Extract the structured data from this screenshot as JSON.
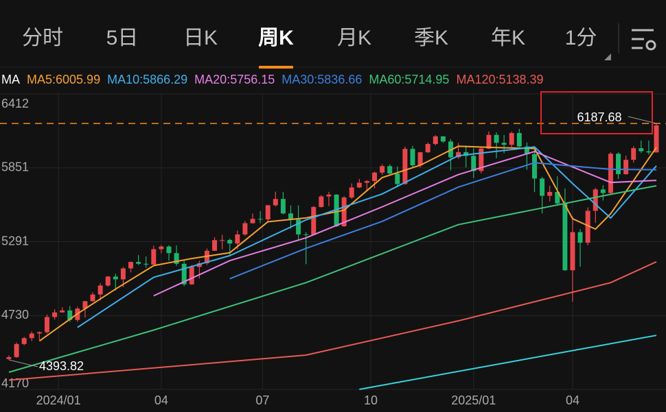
{
  "tabs": [
    "分时",
    "5日",
    "日K",
    "周K",
    "月K",
    "季K",
    "年K",
    "1分"
  ],
  "active_tab": 3,
  "chart_data": {
    "type": "candlestick",
    "legend_title": "MA",
    "candles": [
      [
        4400,
        4428,
        4393.82,
        4415
      ],
      [
        4415,
        4525,
        4410,
        4514
      ],
      [
        4514,
        4568,
        4505,
        4559
      ],
      [
        4559,
        4610,
        4537,
        4594
      ],
      [
        4594,
        4610,
        4546,
        4604
      ],
      [
        4604,
        4738,
        4593,
        4719
      ],
      [
        4719,
        4778,
        4700,
        4754
      ],
      [
        4754,
        4793,
        4751,
        4769
      ],
      [
        4769,
        4802,
        4682,
        4697
      ],
      [
        4697,
        4798,
        4682,
        4783
      ],
      [
        4783,
        4842,
        4714,
        4839
      ],
      [
        4839,
        4907,
        4836,
        4890
      ],
      [
        4890,
        4975,
        4845,
        4958
      ],
      [
        4958,
        5030,
        4950,
        5026
      ],
      [
        5026,
        5048,
        4920,
        5005
      ],
      [
        5005,
        5098,
        4946,
        5088
      ],
      [
        5088,
        5140,
        5057,
        5137
      ],
      [
        5137,
        5189,
        5114,
        5123
      ],
      [
        5123,
        5179,
        5094,
        5117
      ],
      [
        5117,
        5261,
        5117,
        5234
      ],
      [
        5234,
        5264,
        5204,
        5254
      ],
      [
        5254,
        5264,
        5146,
        5204
      ],
      [
        5204,
        5263,
        5107,
        5123
      ],
      [
        5123,
        5146,
        4953,
        4967
      ],
      [
        4967,
        5114,
        4963,
        5099
      ],
      [
        5099,
        5146,
        5011,
        5127
      ],
      [
        5127,
        5239,
        5114,
        5222
      ],
      [
        5222,
        5325,
        5220,
        5303
      ],
      [
        5303,
        5342,
        5234,
        5304
      ],
      [
        5304,
        5315,
        5191,
        5277
      ],
      [
        5277,
        5375,
        5234,
        5346
      ],
      [
        5346,
        5447,
        5334,
        5431
      ],
      [
        5431,
        5505,
        5428,
        5464
      ],
      [
        5464,
        5523,
        5431,
        5460
      ],
      [
        5460,
        5570,
        5447,
        5567
      ],
      [
        5567,
        5670,
        5557,
        5615
      ],
      [
        5615,
        5669,
        5497,
        5505
      ],
      [
        5505,
        5566,
        5390,
        5459
      ],
      [
        5459,
        5566,
        5305,
        5346
      ],
      [
        5346,
        5363,
        5120,
        5344
      ],
      [
        5344,
        5561,
        5341,
        5554
      ],
      [
        5554,
        5644,
        5550,
        5634
      ],
      [
        5634,
        5669,
        5560,
        5648
      ],
      [
        5648,
        5651,
        5402,
        5408
      ],
      [
        5408,
        5636,
        5403,
        5626
      ],
      [
        5626,
        5733,
        5615,
        5702
      ],
      [
        5702,
        5767,
        5698,
        5738
      ],
      [
        5738,
        5757,
        5674,
        5751
      ],
      [
        5751,
        5822,
        5696,
        5815
      ],
      [
        5815,
        5878,
        5796,
        5864
      ],
      [
        5864,
        5878,
        5794,
        5808
      ],
      [
        5808,
        5862,
        5705,
        5728
      ],
      [
        5728,
        6012,
        5724,
        5995
      ],
      [
        5995,
        6017,
        5853,
        5870
      ],
      [
        5870,
        5972,
        5853,
        5969
      ],
      [
        5969,
        6044,
        5964,
        6032
      ],
      [
        6032,
        6099,
        6022,
        6090
      ],
      [
        6090,
        6092,
        6040,
        6051
      ],
      [
        6051,
        6070,
        5832,
        5931
      ],
      [
        5931,
        6040,
        5920,
        5970
      ],
      [
        5970,
        6021,
        5854,
        5942
      ],
      [
        5942,
        6000,
        5773,
        5827
      ],
      [
        5827,
        6004,
        5809,
        5997
      ],
      [
        5997,
        6128,
        5993,
        6101
      ],
      [
        6101,
        6120,
        5924,
        6041
      ],
      [
        6041,
        6101,
        5962,
        6026
      ],
      [
        6026,
        6127,
        6004,
        6115
      ],
      [
        6115,
        6147,
        6009,
        6013
      ],
      [
        6013,
        6043,
        5837,
        5955
      ],
      [
        5955,
        5986,
        5667,
        5770
      ],
      [
        5770,
        5783,
        5505,
        5639
      ],
      [
        5639,
        5715,
        5597,
        5668
      ],
      [
        5668,
        5787,
        5567,
        5581
      ],
      [
        5581,
        5695,
        5069,
        5074
      ],
      [
        5074,
        5482,
        4835,
        5363
      ],
      [
        5363,
        5386,
        5101,
        5283
      ],
      [
        5283,
        5551,
        5262,
        5525
      ],
      [
        5525,
        5700,
        5433,
        5687
      ],
      [
        5687,
        5720,
        5603,
        5660
      ],
      [
        5660,
        5970,
        5655,
        5958
      ],
      [
        5958,
        5969,
        5767,
        5803
      ],
      [
        5803,
        5944,
        5799,
        5912
      ],
      [
        5912,
        6016,
        5891,
        6000
      ],
      [
        6000,
        6059,
        5963,
        5977
      ],
      [
        5977,
        6059,
        5952,
        5968
      ],
      [
        5968,
        6187.68,
        5968,
        6173
      ]
    ],
    "up_color": "#e8474c",
    "down_color": "#1db56b",
    "series": [
      {
        "name": "MA5:6005.99",
        "color": "#f5a030",
        "x": [
          4,
          9,
          14,
          19,
          24,
          29,
          34,
          39,
          44,
          49,
          54,
          59,
          64,
          69,
          74,
          77,
          79,
          85
        ],
        "values": [
          4537,
          4744,
          4931,
          5109,
          5163,
          5207,
          5442,
          5471,
          5530,
          5777,
          5871,
          6015,
          6005,
          5998,
          5465,
          5386,
          5503,
          6005.99
        ]
      },
      {
        "name": "MA10:5866.29",
        "color": "#3fb0ec",
        "x": [
          9,
          19,
          29,
          39,
          49,
          59,
          69,
          74,
          79,
          85
        ],
        "values": [
          4640,
          5020,
          5185,
          5456,
          5653,
          5943,
          6010,
          5732,
          5470,
          5866.29
        ]
      },
      {
        "name": "MA20:5756.15",
        "color": "#e67ee6",
        "x": [
          19,
          29,
          39,
          49,
          59,
          69,
          79,
          85
        ],
        "values": [
          4880,
          5147,
          5320,
          5555,
          5800,
          5975,
          5740,
          5756.15
        ]
      },
      {
        "name": "MA30:5836.66",
        "color": "#3d7fe0",
        "x": [
          29,
          39,
          49,
          59,
          69,
          79,
          85
        ],
        "values": [
          5010,
          5240,
          5445,
          5705,
          5890,
          5840,
          5836.66
        ]
      },
      {
        "name": "MA60:5714.95",
        "color": "#3cc27a",
        "x": [
          0,
          19,
          39,
          59,
          79,
          85
        ],
        "values": [
          4300,
          4620,
          4980,
          5420,
          5650,
          5714.95
        ]
      },
      {
        "name": "MA120:5138.39",
        "color": "#eb5a55",
        "x": [
          0,
          39,
          59,
          79,
          85
        ],
        "values": [
          4240,
          4430,
          4690,
          4980,
          5138.39
        ]
      },
      {
        "color": "#33d6e0",
        "x": [
          46,
          85
        ],
        "values": [
          4170,
          4580
        ]
      }
    ],
    "ylim": [
      4170,
      6412
    ],
    "yticks": [
      4170,
      4730,
      5291,
      5851,
      6412
    ],
    "xlim": [
      0,
      85
    ],
    "xticks": [
      {
        "value": 6.5,
        "label": "2024/01"
      },
      {
        "value": 20,
        "label": "04"
      },
      {
        "value": 33.3,
        "label": "07"
      },
      {
        "value": 47.5,
        "label": "10"
      },
      {
        "value": 61,
        "label": "2025/01"
      },
      {
        "value": 74,
        "label": "04"
      }
    ],
    "high_label": 6187.68,
    "low_label": 4393.82,
    "grid": true
  }
}
